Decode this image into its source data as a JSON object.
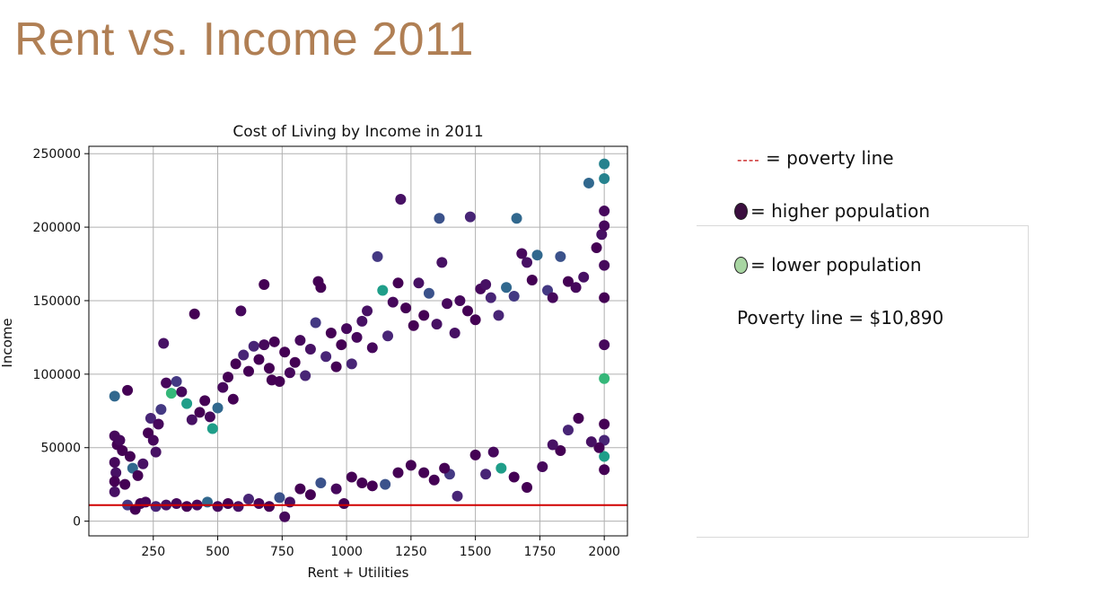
{
  "slide": {
    "title": "Rent vs. Income 2011"
  },
  "legend": {
    "poverty_dash": "----",
    "poverty_text": "= poverty line",
    "higher_text": "= higher population",
    "lower_text": "= lower population",
    "poverty_value_text": "Poverty line = $10,890",
    "higher_color": "#3b0f3f",
    "lower_color": "#a8d5a2",
    "line_color": "#c00000"
  },
  "chart_data": {
    "type": "scatter",
    "title": "Cost of Living by Income in 2011",
    "xlabel": "Rent + Utilities",
    "ylabel": "Income",
    "xlim": [
      0,
      2090
    ],
    "ylim": [
      -10000,
      255000
    ],
    "xticks": [
      250,
      500,
      750,
      1000,
      1250,
      1500,
      1750,
      2000
    ],
    "yticks": [
      0,
      50000,
      100000,
      150000,
      200000,
      250000
    ],
    "grid": true,
    "colormap": "viridis",
    "color_scale_meaning": "dark = higher population, light = lower population",
    "hlines": [
      {
        "y": 10890,
        "color": "#d00000",
        "label": "Poverty line = $10,890"
      }
    ],
    "series": [
      {
        "points": [
          [
            100,
            85000
          ],
          [
            150,
            89000
          ],
          [
            100,
            58000
          ],
          [
            110,
            52000
          ],
          [
            100,
            40000
          ],
          [
            105,
            33000
          ],
          [
            100,
            27000
          ],
          [
            100,
            20000
          ],
          [
            120,
            55000
          ],
          [
            130,
            48000
          ],
          [
            140,
            25000
          ],
          [
            150,
            11000
          ],
          [
            180,
            8000
          ],
          [
            200,
            12000
          ],
          [
            160,
            44000
          ],
          [
            170,
            36000
          ],
          [
            190,
            31000
          ],
          [
            210,
            39000
          ],
          [
            230,
            60000
          ],
          [
            240,
            70000
          ],
          [
            250,
            55000
          ],
          [
            260,
            47000
          ],
          [
            270,
            66000
          ],
          [
            280,
            76000
          ],
          [
            290,
            121000
          ],
          [
            300,
            94000
          ],
          [
            320,
            87000
          ],
          [
            340,
            95000
          ],
          [
            360,
            88000
          ],
          [
            380,
            80000
          ],
          [
            400,
            69000
          ],
          [
            410,
            141000
          ],
          [
            430,
            74000
          ],
          [
            450,
            82000
          ],
          [
            470,
            71000
          ],
          [
            480,
            63000
          ],
          [
            500,
            77000
          ],
          [
            520,
            91000
          ],
          [
            540,
            98000
          ],
          [
            560,
            83000
          ],
          [
            570,
            107000
          ],
          [
            590,
            143000
          ],
          [
            600,
            113000
          ],
          [
            620,
            102000
          ],
          [
            640,
            119000
          ],
          [
            660,
            110000
          ],
          [
            680,
            120000
          ],
          [
            680,
            161000
          ],
          [
            700,
            104000
          ],
          [
            710,
            96000
          ],
          [
            720,
            122000
          ],
          [
            740,
            95000
          ],
          [
            760,
            115000
          ],
          [
            780,
            101000
          ],
          [
            800,
            108000
          ],
          [
            820,
            123000
          ],
          [
            840,
            99000
          ],
          [
            860,
            117000
          ],
          [
            880,
            135000
          ],
          [
            890,
            163000
          ],
          [
            900,
            159000
          ],
          [
            920,
            112000
          ],
          [
            940,
            128000
          ],
          [
            960,
            105000
          ],
          [
            980,
            120000
          ],
          [
            1000,
            131000
          ],
          [
            1020,
            107000
          ],
          [
            1040,
            125000
          ],
          [
            1060,
            136000
          ],
          [
            1080,
            143000
          ],
          [
            1100,
            118000
          ],
          [
            1120,
            180000
          ],
          [
            1140,
            157000
          ],
          [
            1160,
            126000
          ],
          [
            1180,
            149000
          ],
          [
            1200,
            162000
          ],
          [
            1210,
            219000
          ],
          [
            1230,
            145000
          ],
          [
            1260,
            133000
          ],
          [
            1280,
            162000
          ],
          [
            1300,
            140000
          ],
          [
            1320,
            155000
          ],
          [
            1350,
            134000
          ],
          [
            1360,
            206000
          ],
          [
            1370,
            176000
          ],
          [
            1390,
            148000
          ],
          [
            1420,
            128000
          ],
          [
            1440,
            150000
          ],
          [
            1470,
            143000
          ],
          [
            1480,
            207000
          ],
          [
            1500,
            137000
          ],
          [
            1520,
            158000
          ],
          [
            1540,
            161000
          ],
          [
            1560,
            152000
          ],
          [
            1590,
            140000
          ],
          [
            1620,
            159000
          ],
          [
            1650,
            153000
          ],
          [
            1660,
            206000
          ],
          [
            1680,
            182000
          ],
          [
            1700,
            176000
          ],
          [
            1720,
            164000
          ],
          [
            1740,
            181000
          ],
          [
            1780,
            157000
          ],
          [
            1800,
            152000
          ],
          [
            1830,
            180000
          ],
          [
            1860,
            163000
          ],
          [
            1890,
            159000
          ],
          [
            1920,
            166000
          ],
          [
            1940,
            230000
          ],
          [
            1970,
            186000
          ],
          [
            1990,
            195000
          ],
          [
            2000,
            243000
          ],
          [
            2000,
            233000
          ],
          [
            2000,
            211000
          ],
          [
            2000,
            201000
          ],
          [
            2000,
            174000
          ],
          [
            2000,
            152000
          ],
          [
            2000,
            120000
          ],
          [
            2000,
            97000
          ],
          [
            2000,
            66000
          ],
          [
            2000,
            55000
          ],
          [
            2000,
            44000
          ],
          [
            2000,
            35000
          ],
          [
            1980,
            50000
          ],
          [
            1950,
            54000
          ],
          [
            1900,
            70000
          ],
          [
            1860,
            62000
          ],
          [
            1830,
            48000
          ],
          [
            1800,
            52000
          ],
          [
            1760,
            37000
          ],
          [
            1700,
            23000
          ],
          [
            1650,
            30000
          ],
          [
            1600,
            36000
          ],
          [
            1570,
            47000
          ],
          [
            1540,
            32000
          ],
          [
            1500,
            45000
          ],
          [
            1430,
            17000
          ],
          [
            1400,
            32000
          ],
          [
            1380,
            36000
          ],
          [
            1340,
            28000
          ],
          [
            1300,
            33000
          ],
          [
            1250,
            38000
          ],
          [
            1200,
            33000
          ],
          [
            1150,
            25000
          ],
          [
            1100,
            24000
          ],
          [
            1060,
            26000
          ],
          [
            1020,
            30000
          ],
          [
            990,
            12000
          ],
          [
            960,
            22000
          ],
          [
            900,
            26000
          ],
          [
            860,
            18000
          ],
          [
            820,
            22000
          ],
          [
            780,
            13000
          ],
          [
            760,
            3000
          ],
          [
            740,
            16000
          ],
          [
            700,
            10000
          ],
          [
            660,
            12000
          ],
          [
            620,
            15000
          ],
          [
            580,
            10000
          ],
          [
            540,
            12000
          ],
          [
            500,
            10000
          ],
          [
            460,
            13000
          ],
          [
            420,
            11000
          ],
          [
            380,
            10000
          ],
          [
            340,
            12000
          ],
          [
            300,
            11000
          ],
          [
            260,
            10000
          ],
          [
            220,
            13000
          ]
        ]
      }
    ]
  }
}
